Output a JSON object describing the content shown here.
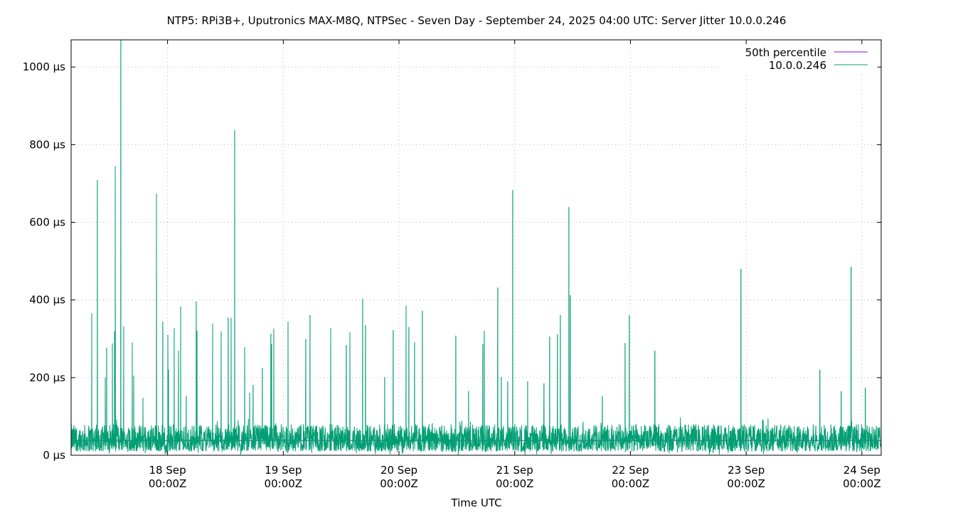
{
  "chart_data": {
    "type": "line",
    "title": "NTP5: RPi3B+, Uputronics MAX-M8Q, NTPSec - Seven Day - September 24, 2025 04:00 UTC: Server Jitter 10.0.0.246",
    "xlabel": "Time UTC",
    "ylabel": "",
    "xlim": [
      "2025-09-17T04:00Z",
      "2025-09-24T04:00Z"
    ],
    "ylim": [
      0,
      1070
    ],
    "y_unit": "µs",
    "grid": true,
    "legend_position": "top-right",
    "x_ticks": [
      {
        "t": "2025-09-18T00:00Z",
        "line1": "18 Sep",
        "line2": "00:00Z"
      },
      {
        "t": "2025-09-19T00:00Z",
        "line1": "19 Sep",
        "line2": "00:00Z"
      },
      {
        "t": "2025-09-20T00:00Z",
        "line1": "20 Sep",
        "line2": "00:00Z"
      },
      {
        "t": "2025-09-21T00:00Z",
        "line1": "21 Sep",
        "line2": "00:00Z"
      },
      {
        "t": "2025-09-22T00:00Z",
        "line1": "22 Sep",
        "line2": "00:00Z"
      },
      {
        "t": "2025-09-23T00:00Z",
        "line1": "23 Sep",
        "line2": "00:00Z"
      },
      {
        "t": "2025-09-24T00:00Z",
        "line1": "24 Sep",
        "line2": "00:00Z"
      }
    ],
    "y_ticks": [
      {
        "v": 0,
        "label": "0 µs"
      },
      {
        "v": 200,
        "label": "200 µs"
      },
      {
        "v": 400,
        "label": "400 µs"
      },
      {
        "v": 600,
        "label": "600 µs"
      },
      {
        "v": 800,
        "label": "800 µs"
      },
      {
        "v": 1000,
        "label": "1000 µs"
      }
    ],
    "series": [
      {
        "name": "50th percentile",
        "color": "#9400d3",
        "value": 38
      },
      {
        "name": "10.0.0.246",
        "color": "#009e73",
        "typical_range": [
          10,
          80
        ],
        "spikes": [
          [
            "2025-09-17T08:17Z",
            366
          ],
          [
            "2025-09-17T09:27Z",
            709
          ],
          [
            "2025-09-17T11:05Z",
            200
          ],
          [
            "2025-09-17T11:22Z",
            277
          ],
          [
            "2025-09-17T12:33Z",
            288
          ],
          [
            "2025-09-17T13:00Z",
            319
          ],
          [
            "2025-09-17T13:09Z",
            744
          ],
          [
            "2025-09-17T14:19Z",
            1100
          ],
          [
            "2025-09-17T14:55Z",
            332
          ],
          [
            "2025-09-17T16:41Z",
            290
          ],
          [
            "2025-09-17T16:59Z",
            205
          ],
          [
            "2025-09-17T18:54Z",
            148
          ],
          [
            "2025-09-17T21:42Z",
            674
          ],
          [
            "2025-09-17T23:01Z",
            344
          ],
          [
            "2025-09-18T00:04Z",
            310
          ],
          [
            "2025-09-18T00:12Z",
            220
          ],
          [
            "2025-09-18T01:23Z",
            328
          ],
          [
            "2025-09-18T02:16Z",
            269
          ],
          [
            "2025-09-18T02:43Z",
            383
          ],
          [
            "2025-09-18T03:53Z",
            152
          ],
          [
            "2025-09-18T05:57Z",
            396
          ],
          [
            "2025-09-18T06:06Z",
            320
          ],
          [
            "2025-09-18T09:21Z",
            339
          ],
          [
            "2025-09-18T11:07Z",
            319
          ],
          [
            "2025-09-18T12:35Z",
            354
          ],
          [
            "2025-09-18T13:11Z",
            354
          ],
          [
            "2025-09-18T13:55Z",
            837
          ],
          [
            "2025-09-18T15:59Z",
            278
          ],
          [
            "2025-09-18T17:01Z",
            161
          ],
          [
            "2025-09-18T17:45Z",
            181
          ],
          [
            "2025-09-18T19:40Z",
            225
          ],
          [
            "2025-09-18T21:26Z",
            313
          ],
          [
            "2025-09-18T21:35Z",
            286
          ],
          [
            "2025-09-18T22:02Z",
            326
          ],
          [
            "2025-09-19T00:59Z",
            344
          ],
          [
            "2025-09-19T04:40Z",
            299
          ],
          [
            "2025-09-19T05:33Z",
            361
          ],
          [
            "2025-09-19T09:50Z",
            328
          ],
          [
            "2025-09-19T13:04Z",
            284
          ],
          [
            "2025-09-19T13:49Z",
            317
          ],
          [
            "2025-09-19T16:28Z",
            403
          ],
          [
            "2025-09-19T17:03Z",
            335
          ],
          [
            "2025-09-19T21:02Z",
            201
          ],
          [
            "2025-09-19T22:48Z",
            322
          ],
          [
            "2025-09-20T01:28Z",
            385
          ],
          [
            "2025-09-20T02:03Z",
            330
          ],
          [
            "2025-09-20T03:14Z",
            291
          ],
          [
            "2025-09-20T04:51Z",
            372
          ],
          [
            "2025-09-20T11:47Z",
            308
          ],
          [
            "2025-09-20T14:26Z",
            165
          ],
          [
            "2025-09-20T17:23Z",
            286
          ],
          [
            "2025-09-20T17:41Z",
            320
          ],
          [
            "2025-09-20T20:29Z",
            432
          ],
          [
            "2025-09-20T21:13Z",
            201
          ],
          [
            "2025-09-20T22:33Z",
            190
          ],
          [
            "2025-09-20T23:35Z",
            683
          ],
          [
            "2025-09-21T02:41Z",
            190
          ],
          [
            "2025-09-21T06:04Z",
            185
          ],
          [
            "2025-09-21T07:15Z",
            306
          ],
          [
            "2025-09-21T08:52Z",
            311
          ],
          [
            "2025-09-21T09:28Z",
            361
          ],
          [
            "2025-09-21T11:14Z",
            639
          ],
          [
            "2025-09-21T11:31Z",
            412
          ],
          [
            "2025-09-21T18:10Z",
            152
          ],
          [
            "2025-09-21T22:53Z",
            289
          ],
          [
            "2025-09-21T23:46Z",
            361
          ],
          [
            "2025-09-22T05:04Z",
            269
          ],
          [
            "2025-09-22T22:55Z",
            480
          ],
          [
            "2025-09-23T15:17Z",
            220
          ],
          [
            "2025-09-23T19:43Z",
            165
          ],
          [
            "2025-09-23T21:46Z",
            485
          ],
          [
            "2025-09-24T00:43Z",
            174
          ]
        ]
      }
    ]
  }
}
